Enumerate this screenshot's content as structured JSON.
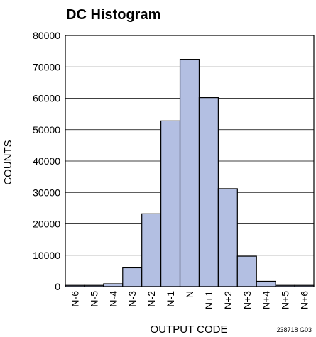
{
  "chart_data": {
    "type": "bar",
    "title": "DC Histogram",
    "xlabel": "OUTPUT CODE",
    "ylabel": "COUNTS",
    "categories": [
      "N-6",
      "N-5",
      "N-4",
      "N-3",
      "N-2",
      "N-1",
      "N",
      "N+1",
      "N+2",
      "N+3",
      "N+4",
      "N+5",
      "N+6"
    ],
    "values": [
      400,
      400,
      900,
      6000,
      23200,
      52800,
      72400,
      60200,
      31200,
      9700,
      1700,
      400,
      400
    ],
    "ylim": [
      0,
      80000
    ],
    "yticks": [
      0,
      10000,
      20000,
      30000,
      40000,
      50000,
      60000,
      70000,
      80000
    ],
    "grid": true,
    "bar_color": "#b3bfe2",
    "bar_edge_color": "#000000"
  },
  "figure_id": "238718 G03"
}
